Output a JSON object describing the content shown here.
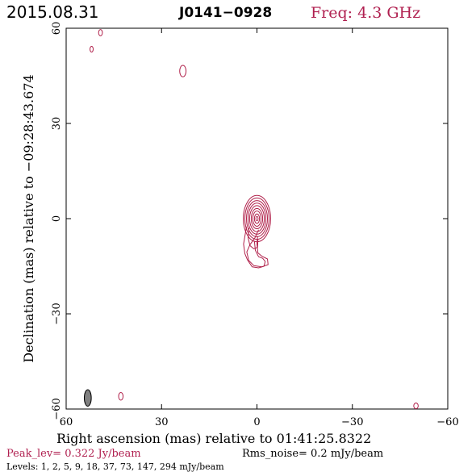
{
  "header": {
    "date": "2015.08.31",
    "source": "J0141−0928",
    "freq": "Freq: 4.3 GHz"
  },
  "footer": {
    "peak": "Peak_lev=  0.322 Jy/beam",
    "rms": "Rms_noise=  0.2 mJy/beam",
    "levels": "Levels:  1,  2,  5,  9,  18,  37,  73, 147, 294 mJy/beam"
  },
  "colors": {
    "contour": "#b0204a",
    "frame": "#000000",
    "beam": "#808080"
  },
  "chart_data": {
    "type": "contour",
    "xlabel": "Right ascension (mas) relative to 01:41:25.8322",
    "ylabel": "Declination (mas) relative to −09:28:43.674",
    "xlim": [
      60,
      -60
    ],
    "ylim": [
      -60,
      60
    ],
    "x_ticks": [
      60,
      30,
      0,
      -30,
      -60
    ],
    "y_ticks": [
      -60,
      -30,
      0,
      30,
      60
    ],
    "x_tick_labels": [
      "60",
      "30",
      "0",
      "−30",
      "−60"
    ],
    "y_tick_labels": [
      "−60",
      "−30",
      "0",
      "30",
      "60"
    ],
    "levels_mJy": [
      1,
      2,
      5,
      9,
      18,
      37,
      73,
      147,
      294
    ],
    "peak_Jy_per_beam": 0.322,
    "rms_mJy_per_beam": 0.2,
    "core": {
      "x": 0,
      "y": 0,
      "contours": [
        {
          "level": 1,
          "rx": 4.3,
          "ry": 7.3
        },
        {
          "level": 2,
          "rx": 3.8,
          "ry": 6.5
        },
        {
          "level": 5,
          "rx": 3.3,
          "ry": 5.7
        },
        {
          "level": 9,
          "rx": 2.8,
          "ry": 4.9
        },
        {
          "level": 18,
          "rx": 2.3,
          "ry": 4.1
        },
        {
          "level": 37,
          "rx": 1.8,
          "ry": 3.2
        },
        {
          "level": 73,
          "rx": 1.3,
          "ry": 2.4
        },
        {
          "level": 147,
          "rx": 0.8,
          "ry": 1.5
        },
        {
          "level": 294,
          "rx": 0.35,
          "ry": 0.7
        }
      ]
    },
    "jet_outlines": [
      [
        [
          3.3,
          -2.5
        ],
        [
          3.7,
          -5
        ],
        [
          4.2,
          -8
        ],
        [
          3.8,
          -11
        ],
        [
          3.0,
          -13
        ],
        [
          1.5,
          -15.2
        ],
        [
          -0.5,
          -15.5
        ],
        [
          -2.2,
          -15
        ],
        [
          -2.6,
          -13.5
        ],
        [
          -1.8,
          -12.5
        ],
        [
          -0.5,
          -12
        ],
        [
          0.5,
          -10
        ],
        [
          0.8,
          -7
        ]
      ],
      [
        [
          2.5,
          -3
        ],
        [
          2.8,
          -6
        ],
        [
          2.2,
          -8.5
        ],
        [
          1.0,
          -9.5
        ],
        [
          -0.2,
          -9.0
        ],
        [
          -0.3,
          -6.5
        ]
      ],
      [
        [
          -0.5,
          -3.5
        ],
        [
          0.6,
          -6
        ],
        [
          2.2,
          -8.2
        ],
        [
          3.2,
          -10.5
        ],
        [
          2.6,
          -13.2
        ],
        [
          1.0,
          -14.8
        ],
        [
          -1.5,
          -15.2
        ],
        [
          -3.5,
          -14.5
        ],
        [
          -3.3,
          -12.7
        ],
        [
          -1.5,
          -11.8
        ],
        [
          -0.3,
          -10.8
        ],
        [
          0.0,
          -8
        ],
        [
          -0.2,
          -5.5
        ]
      ]
    ],
    "isolated_components": [
      {
        "x": 49.2,
        "y": 58.6,
        "rx": 0.6,
        "ry": 1.0
      },
      {
        "x": 52.0,
        "y": 53.4,
        "rx": 0.5,
        "ry": 0.9
      },
      {
        "x": 23.3,
        "y": 46.5,
        "rx": 1.0,
        "ry": 1.8
      },
      {
        "x": 42.8,
        "y": -56.0,
        "rx": 0.7,
        "ry": 1.2
      },
      {
        "x": -50.0,
        "y": -59.0,
        "rx": 0.7,
        "ry": 0.9
      }
    ],
    "beam": {
      "x": 53.2,
      "y": -56.5,
      "major_mas": 5.2,
      "minor_mas": 2.2,
      "pa_deg": 0
    }
  }
}
